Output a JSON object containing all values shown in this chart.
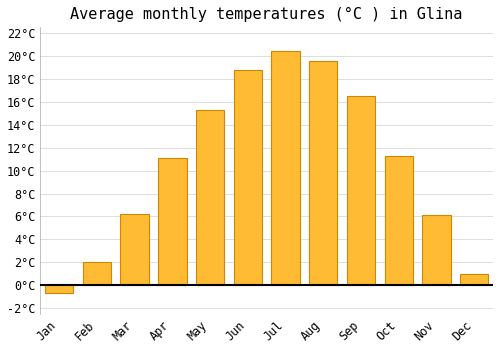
{
  "title": "Average monthly temperatures (°C ) in Glina",
  "months": [
    "Jan",
    "Feb",
    "Mar",
    "Apr",
    "May",
    "Jun",
    "Jul",
    "Aug",
    "Sep",
    "Oct",
    "Nov",
    "Dec"
  ],
  "values": [
    -0.7,
    2.0,
    6.2,
    11.1,
    15.3,
    18.8,
    20.4,
    19.6,
    16.5,
    11.3,
    6.1,
    1.0
  ],
  "bar_color": "#FFBB33",
  "bar_edge_color": "#CC8800",
  "ylim": [
    -2.5,
    22.5
  ],
  "yticks": [
    -2,
    0,
    2,
    4,
    6,
    8,
    10,
    12,
    14,
    16,
    18,
    20,
    22
  ],
  "ytick_labels": [
    "-2°C",
    "0°C",
    "2°C",
    "4°C",
    "6°C",
    "8°C",
    "10°C",
    "12°C",
    "14°C",
    "16°C",
    "18°C",
    "20°C",
    "22°C"
  ],
  "background_color": "#ffffff",
  "grid_color": "#dddddd",
  "title_fontsize": 11,
  "tick_fontsize": 8.5,
  "zero_line_color": "#000000"
}
